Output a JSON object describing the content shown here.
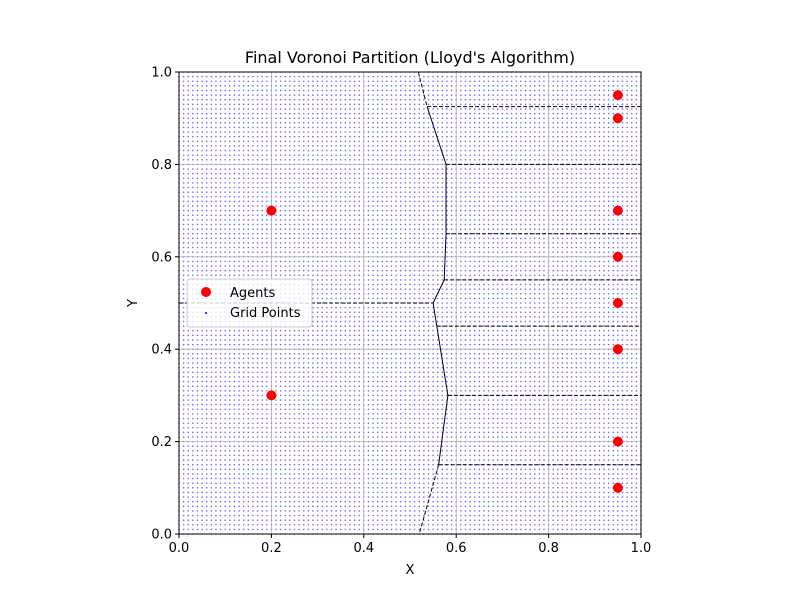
{
  "chart_data": {
    "type": "scatter",
    "title": "Final Voronoi Partition (Lloyd's Algorithm)",
    "xlabel": "X",
    "ylabel": "Y",
    "xlim": [
      0.0,
      1.0
    ],
    "ylim": [
      0.0,
      1.0
    ],
    "xticks": [
      "0.0",
      "0.2",
      "0.4",
      "0.6",
      "0.8",
      "1.0"
    ],
    "yticks": [
      "0.0",
      "0.2",
      "0.4",
      "0.6",
      "0.8",
      "1.0"
    ],
    "grid": true,
    "legend_placement": "center-left",
    "legend": [
      {
        "label": "Agents",
        "color": "#ff0000",
        "marker": "circle"
      },
      {
        "label": "Grid Points",
        "color": "#0000ff",
        "marker": "dot"
      }
    ],
    "agents": [
      {
        "x": 0.2,
        "y": 0.7
      },
      {
        "x": 0.2,
        "y": 0.3
      },
      {
        "x": 0.95,
        "y": 0.95
      },
      {
        "x": 0.95,
        "y": 0.9
      },
      {
        "x": 0.95,
        "y": 0.7
      },
      {
        "x": 0.95,
        "y": 0.6
      },
      {
        "x": 0.95,
        "y": 0.5
      },
      {
        "x": 0.95,
        "y": 0.4
      },
      {
        "x": 0.95,
        "y": 0.2
      },
      {
        "x": 0.95,
        "y": 0.1
      }
    ],
    "grid_points_step": 0.01,
    "voronoi_edges": [
      {
        "x": [
          0.518,
          0.537
        ],
        "y": [
          1.0,
          0.925
        ],
        "style": "dashed"
      },
      {
        "x": [
          0.537,
          0.578
        ],
        "y": [
          0.925,
          0.8
        ],
        "style": "solid"
      },
      {
        "x": [
          0.578,
          0.578
        ],
        "y": [
          0.8,
          0.65
        ],
        "style": "solid"
      },
      {
        "x": [
          0.578,
          0.574
        ],
        "y": [
          0.65,
          0.55
        ],
        "style": "solid"
      },
      {
        "x": [
          0.574,
          0.55
        ],
        "y": [
          0.55,
          0.5
        ],
        "style": "solid"
      },
      {
        "x": [
          0.55,
          0.558
        ],
        "y": [
          0.5,
          0.45
        ],
        "style": "solid"
      },
      {
        "x": [
          0.558,
          0.582
        ],
        "y": [
          0.45,
          0.3
        ],
        "style": "solid"
      },
      {
        "x": [
          0.582,
          0.562
        ],
        "y": [
          0.3,
          0.15
        ],
        "style": "solid"
      },
      {
        "x": [
          0.562,
          0.52
        ],
        "y": [
          0.15,
          0.0
        ],
        "style": "dashed"
      },
      {
        "x": [
          0.0,
          0.55
        ],
        "y": [
          0.5,
          0.5
        ],
        "style": "dashed"
      },
      {
        "x": [
          0.537,
          1.0
        ],
        "y": [
          0.925,
          0.925
        ],
        "style": "dashed"
      },
      {
        "x": [
          0.578,
          1.0
        ],
        "y": [
          0.8,
          0.8
        ],
        "style": "dashed"
      },
      {
        "x": [
          0.578,
          1.0
        ],
        "y": [
          0.65,
          0.65
        ],
        "style": "dashed"
      },
      {
        "x": [
          0.574,
          1.0
        ],
        "y": [
          0.55,
          0.55
        ],
        "style": "dashed"
      },
      {
        "x": [
          0.558,
          1.0
        ],
        "y": [
          0.45,
          0.45
        ],
        "style": "dashed"
      },
      {
        "x": [
          0.582,
          1.0
        ],
        "y": [
          0.3,
          0.3
        ],
        "style": "dashed"
      },
      {
        "x": [
          0.562,
          1.0
        ],
        "y": [
          0.15,
          0.15
        ],
        "style": "dashed"
      }
    ],
    "colors": {
      "agents": "#ff0000",
      "grid_points": "#0000ff",
      "edges": "#000000",
      "gridlines": "#b0b0b0"
    }
  }
}
